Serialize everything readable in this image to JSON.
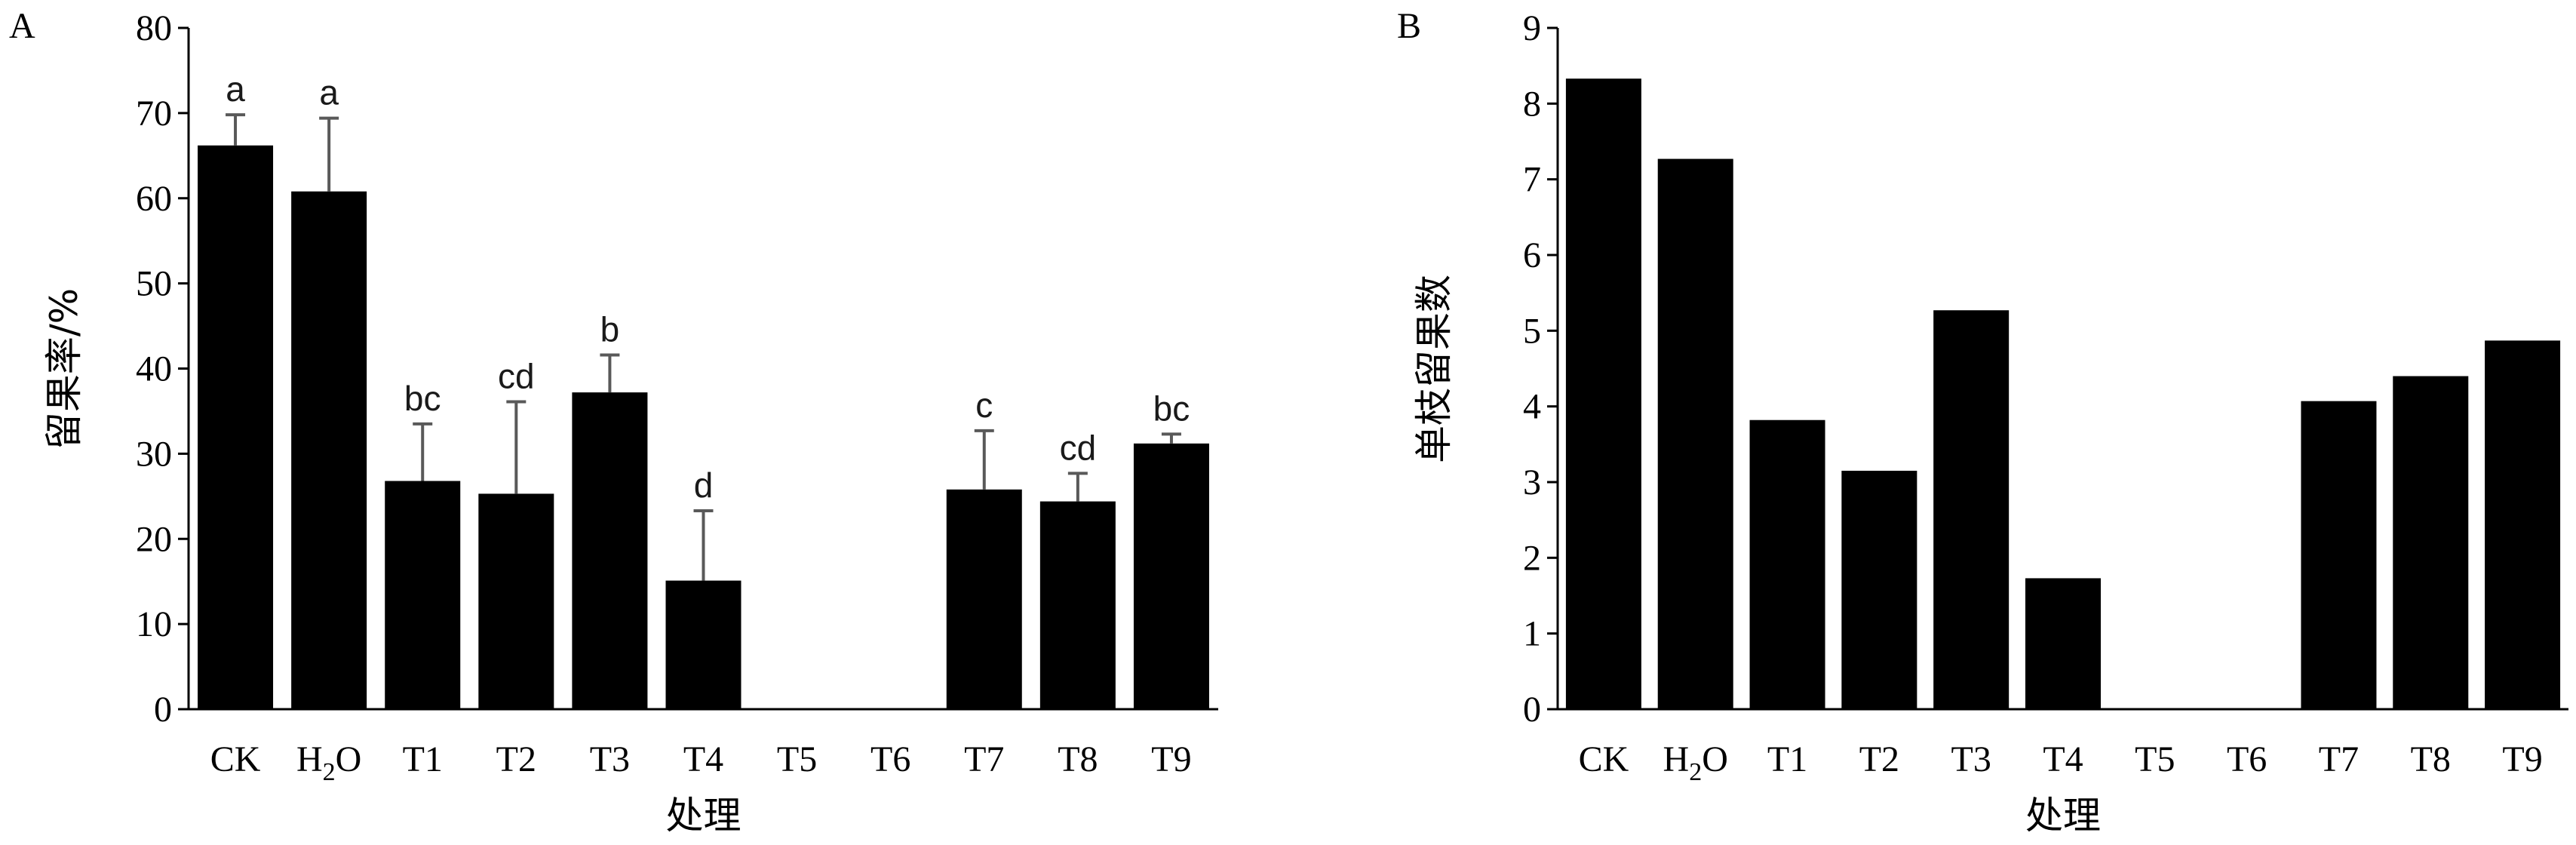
{
  "chart_data": [
    {
      "type": "bar",
      "panel_label": "A",
      "categories": [
        "CK",
        "H2O",
        "T1",
        "T2",
        "T3",
        "T4",
        "T5",
        "T6",
        "T7",
        "T8",
        "T9"
      ],
      "values": [
        66.2,
        60.8,
        26.8,
        25.3,
        37.2,
        15.1,
        0,
        0,
        25.8,
        24.4,
        31.2
      ],
      "errors": [
        3.6,
        8.6,
        6.7,
        10.8,
        4.4,
        8.2,
        0,
        0,
        6.9,
        3.3,
        1.1
      ],
      "sig_letters": [
        "a",
        "a",
        "bc",
        "cd",
        "b",
        "d",
        "",
        "",
        "c",
        "cd",
        "bc"
      ],
      "xlabel": "处理",
      "ylabel": "留果率/%",
      "ylim": [
        0,
        80
      ],
      "yticks": [
        0,
        10,
        20,
        30,
        40,
        50,
        60,
        70,
        80
      ],
      "grid": false,
      "colors": {
        "bar": "#000000",
        "error_bar": "#595959"
      }
    },
    {
      "type": "bar",
      "panel_label": "B",
      "categories": [
        "CK",
        "H2O",
        "T1",
        "T2",
        "T3",
        "T4",
        "T5",
        "T6",
        "T7",
        "T8",
        "T9"
      ],
      "values": [
        8.33,
        7.27,
        3.82,
        3.15,
        5.27,
        1.73,
        0,
        0,
        4.07,
        4.4,
        4.87
      ],
      "xlabel": "处理",
      "ylabel": "单枝留果数",
      "ylim": [
        0,
        9
      ],
      "yticks": [
        0,
        1,
        2,
        3,
        4,
        5,
        6,
        7,
        8,
        9
      ],
      "grid": false,
      "colors": {
        "bar": "#000000"
      }
    }
  ]
}
